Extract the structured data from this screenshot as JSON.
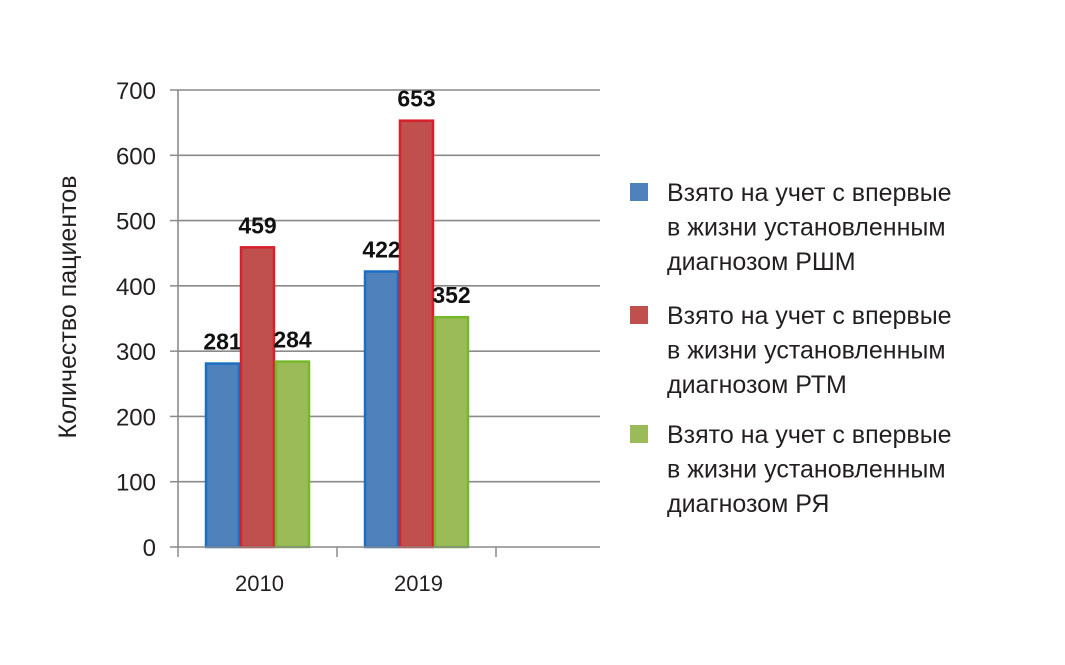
{
  "chart_data": {
    "type": "bar",
    "title": "",
    "xlabel": "",
    "ylabel": "Количество пациентов",
    "ylim": [
      0,
      700
    ],
    "yticks": [
      "0",
      "100",
      "200",
      "300",
      "400",
      "500",
      "600",
      "700"
    ],
    "grid": true,
    "legend_position": "right",
    "categories": [
      "2010",
      "2019"
    ],
    "series": [
      {
        "name": [
          "Взято на учет с впервые",
          "в жизни установленным",
          "диагнозом РШМ"
        ],
        "values": [
          281,
          422
        ],
        "color": "#4f81bd",
        "border": "#1a6fc4"
      },
      {
        "name": [
          "Взято на учет с впервые",
          "в жизни установленным",
          "диагнозом РТМ"
        ],
        "values": [
          459,
          653
        ],
        "color": "#c0504d",
        "border": "#d7202b"
      },
      {
        "name": [
          "Взято на учет с впервые",
          "в жизни установленным",
          "диагнозом РЯ"
        ],
        "values": [
          284,
          352
        ],
        "color": "#9bbb59",
        "border": "#76b82a"
      }
    ],
    "data_labels": [
      [
        "281",
        "422"
      ],
      [
        "459",
        "653"
      ],
      [
        "284",
        "352"
      ]
    ]
  }
}
